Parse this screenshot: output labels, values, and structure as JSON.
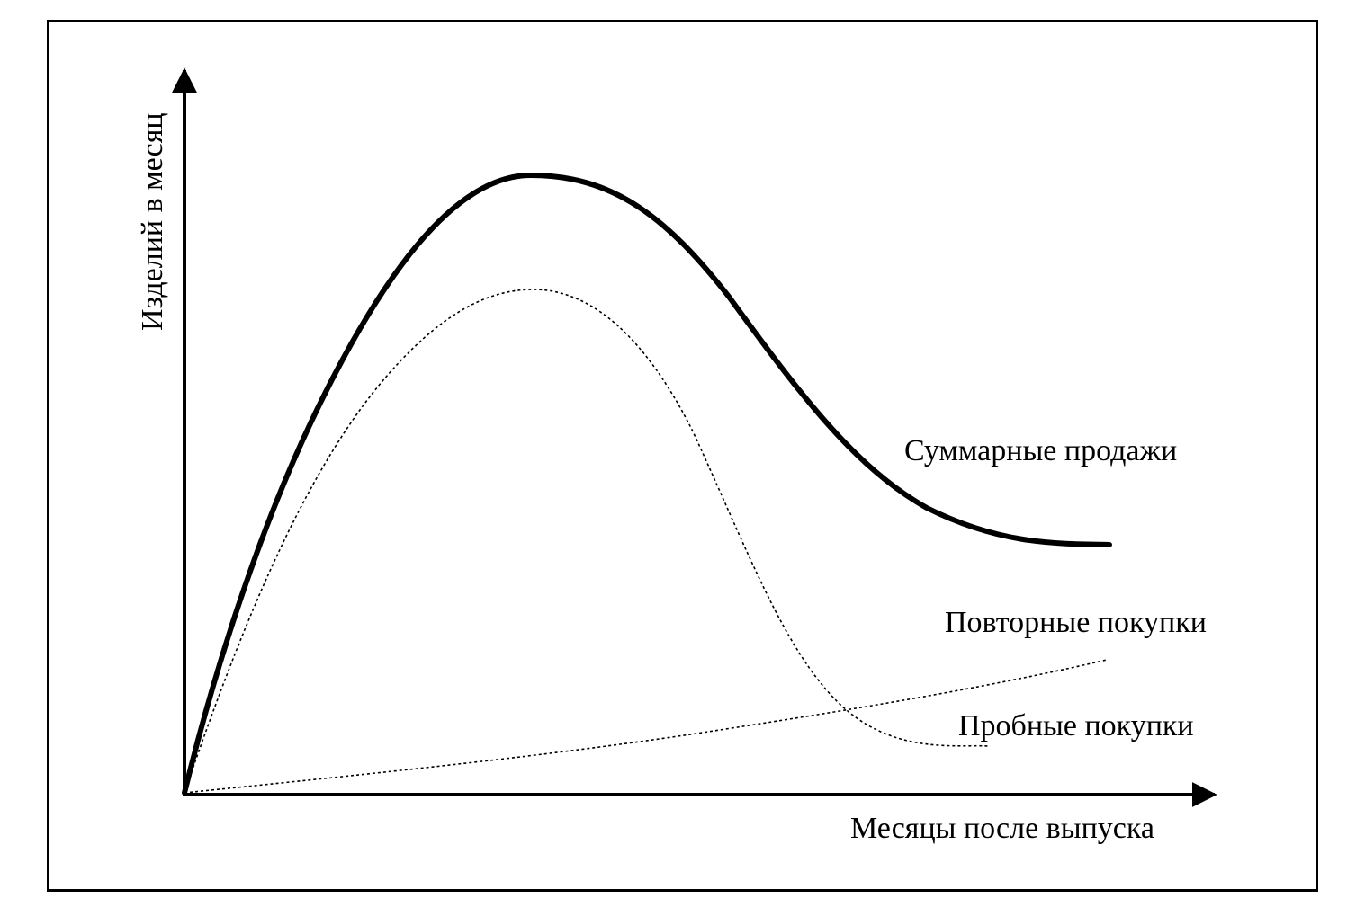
{
  "diagram": {
    "y_axis_label": "Изделий в месяц",
    "x_axis_label": "Месяцы после выпуска",
    "curves": {
      "total": {
        "label": "Суммарные продажи",
        "style": "solid-thick"
      },
      "repeat": {
        "label": "Повторные покупки",
        "style": "dotted"
      },
      "trial": {
        "label": "Пробные покупки",
        "style": "dotted"
      }
    },
    "colors": {
      "line": "#000000",
      "background": "#ffffff"
    }
  }
}
